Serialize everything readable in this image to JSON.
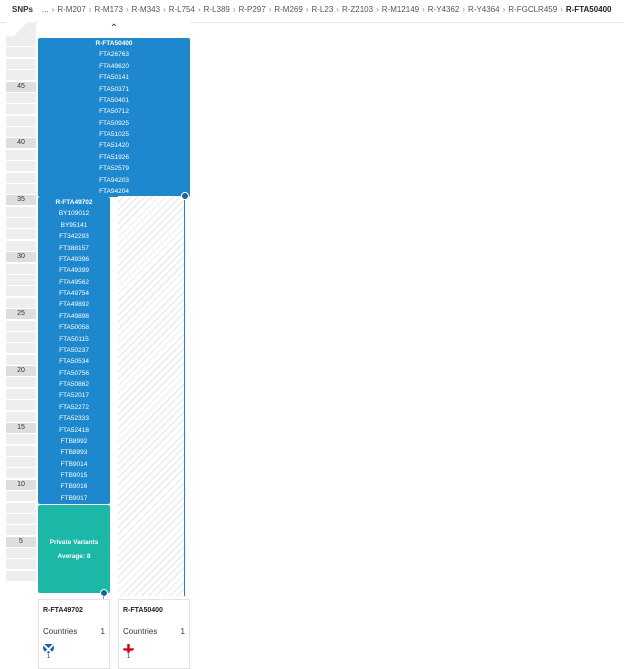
{
  "header": {
    "snps_label": "SNPs",
    "ellipsis": "...",
    "breadcrumbs": [
      "R-M207",
      "R-M173",
      "R-M343",
      "R-L754",
      "R-L389",
      "R-P297",
      "R-M269",
      "R-L23",
      "R-Z2103",
      "R-M12149",
      "R-Y4362",
      "R-Y4364",
      "R-FGCLR459",
      "R-FTA50400"
    ]
  },
  "collapse_icon": "chevron-up-icon",
  "ruler": {
    "labels": [
      {
        "row": 4,
        "text": "45"
      },
      {
        "row": 9,
        "text": "40"
      },
      {
        "row": 14,
        "text": "35"
      },
      {
        "row": 19,
        "text": "30"
      },
      {
        "row": 24,
        "text": "25"
      },
      {
        "row": 29,
        "text": "20"
      },
      {
        "row": 34,
        "text": "15"
      },
      {
        "row": 39,
        "text": "10"
      },
      {
        "row": 44,
        "text": "5"
      }
    ]
  },
  "top_block": {
    "head": "R-FTA50400",
    "snps": [
      "FTA26763",
      "FTA49620",
      "FTA50141",
      "FTA50371",
      "FTA50401",
      "FTA50712",
      "FTA50925",
      "FTA51025",
      "FTA51420",
      "FTA51926",
      "FTA52579",
      "FTA94203",
      "FTA94204"
    ]
  },
  "left_block": {
    "head": "R-FTA49702",
    "snps": [
      "BY109012",
      "BY95141",
      "FT342293",
      "FT388157",
      "FTA49396",
      "FTA49399",
      "FTA49562",
      "FTA49754",
      "FTA49892",
      "FTA49898",
      "FTA50058",
      "FTA50115",
      "FTA50237",
      "FTA50534",
      "FTA50756",
      "FTA50862",
      "FTA52017",
      "FTA52272",
      "FTA52333",
      "FTA52418",
      "FTB8992",
      "FTB8993",
      "FTB9014",
      "FTB9015",
      "FTB9016",
      "FTB9017"
    ]
  },
  "private_variants": {
    "title": "Private Variants",
    "average": "Average: 8"
  },
  "cards": [
    {
      "title": "R-FTA49702",
      "label": "Countries",
      "count": "1",
      "flag": "scotland-flag-icon",
      "flag_count": "1"
    },
    {
      "title": "R-FTA50400",
      "label": "Countries",
      "count": "1",
      "flag": "england-flag-icon",
      "flag_count": "1"
    }
  ],
  "colors": {
    "block_blue": "#1e88cf",
    "private_teal": "#1cb8a7",
    "branch_line": "#1e88cf"
  }
}
